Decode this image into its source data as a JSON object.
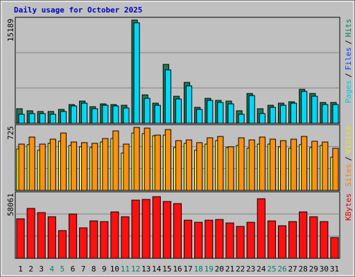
{
  "chart_data": [
    {
      "type": "bar",
      "title": "Daily usage for October 2025",
      "title_color": "#0000c0",
      "ylim": [
        0,
        15189
      ],
      "yticks": [
        15189
      ],
      "grid": true,
      "legend": [
        {
          "label": "Pages",
          "color": "#00c8e8"
        },
        {
          "label": "Files",
          "color": "#0040ff"
        },
        {
          "label": "Hits",
          "color": "#00805c"
        }
      ],
      "separator": "/",
      "series": [
        {
          "color": "#1a7a5a",
          "values": [
            2085,
            1790,
            1690,
            1690,
            1990,
            2680,
            3180,
            2380,
            2780,
            2680,
            2580,
            14795,
            4070,
            2880,
            8440,
            3870,
            5860,
            2285,
            3575,
            3280,
            3180,
            1790,
            4270,
            2085,
            2580,
            2880,
            3080,
            4865,
            4270,
            2980,
            2980
          ]
        },
        {
          "color": "#00d8f8",
          "values": [
            1290,
            1390,
            1390,
            1290,
            1690,
            2480,
            2880,
            2085,
            2580,
            2480,
            2185,
            14400,
            3575,
            2580,
            7650,
            3475,
            5360,
            1985,
            3280,
            2980,
            2780,
            1290,
            3970,
            1390,
            2285,
            2580,
            2880,
            4570,
            3870,
            2680,
            2680
          ]
        }
      ]
    },
    {
      "type": "bar",
      "ylim": [
        0,
        725
      ],
      "yticks": [
        725
      ],
      "grid": true,
      "legend": [
        {
          "label": "Sites",
          "color": "#ff8000"
        },
        {
          "label": "Visits",
          "color": "#e8e800"
        }
      ],
      "separator": "/",
      "series": [
        {
          "color": "#ffff30",
          "values": [
            458,
            504,
            443,
            519,
            542,
            496,
            481,
            473,
            534,
            572,
            412,
            633,
            626,
            603,
            610,
            473,
            519,
            443,
            511,
            549,
            473,
            496,
            465,
            511,
            511,
            481,
            465,
            504,
            473,
            496,
            366
          ]
        },
        {
          "color": "#ff9010",
          "values": [
            511,
            588,
            511,
            565,
            633,
            534,
            527,
            519,
            572,
            656,
            511,
            694,
            687,
            610,
            671,
            549,
            557,
            527,
            580,
            595,
            481,
            580,
            557,
            588,
            565,
            549,
            565,
            595,
            542,
            534,
            465
          ]
        }
      ]
    },
    {
      "type": "bar",
      "ylim": [
        0,
        58061
      ],
      "yticks": [
        58061
      ],
      "grid": true,
      "legend": [
        {
          "label": "KBytes",
          "color": "#e00000"
        }
      ],
      "series": [
        {
          "color": "#ff1010",
          "values": [
            34485,
            43560,
            39930,
            36300,
            24200,
            38720,
            26620,
            32670,
            32065,
            40535,
            36300,
            50820,
            51425,
            53845,
            49610,
            47795,
            33275,
            31460,
            33275,
            33880,
            30855,
            27830,
            31460,
            52030,
            32670,
            28435,
            32065,
            40535,
            36300,
            32065,
            18150
          ]
        }
      ],
      "categories": [
        "1",
        "2",
        "3",
        "4",
        "5",
        "6",
        "7",
        "8",
        "9",
        "10",
        "11",
        "12",
        "13",
        "14",
        "15",
        "16",
        "17",
        "18",
        "19",
        "20",
        "21",
        "22",
        "23",
        "24",
        "25",
        "26",
        "27",
        "28",
        "29",
        "30",
        "31"
      ],
      "category_colors": [
        "#000000",
        "#000000",
        "#000000",
        "#008060",
        "#008060",
        "#000000",
        "#000000",
        "#000000",
        "#000000",
        "#000000",
        "#008060",
        "#008060",
        "#000000",
        "#000000",
        "#000000",
        "#000000",
        "#000000",
        "#008060",
        "#008060",
        "#000000",
        "#000000",
        "#000000",
        "#000000",
        "#000000",
        "#008060",
        "#008060",
        "#000000",
        "#000000",
        "#000000",
        "#000000",
        "#000000"
      ]
    }
  ]
}
